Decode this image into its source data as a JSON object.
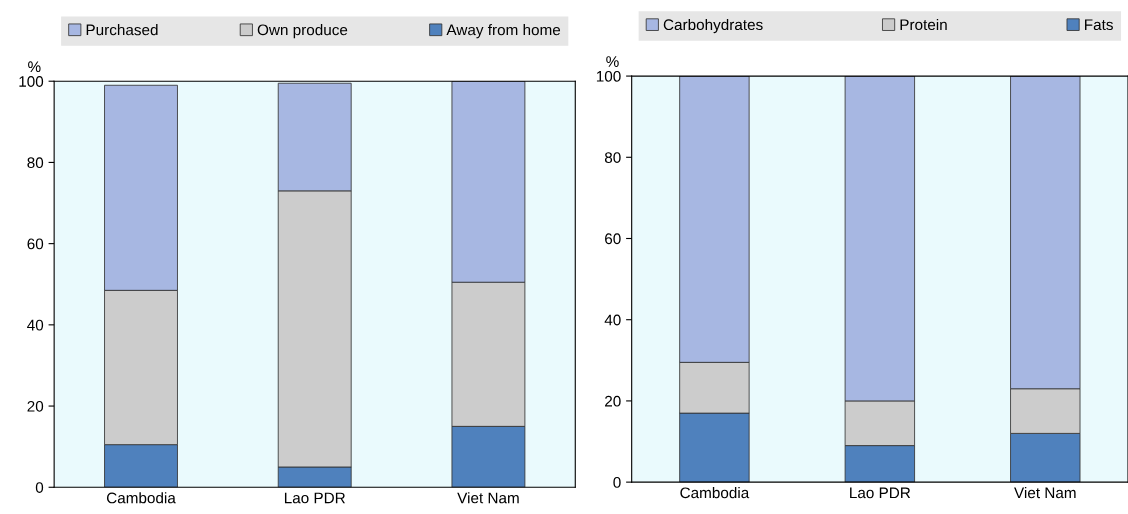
{
  "chart_data": [
    {
      "type": "bar",
      "stacked": true,
      "ylabel": "%",
      "categories": [
        "Cambodia",
        "Lao PDR",
        "Viet Nam"
      ],
      "ylim": [
        0,
        100
      ],
      "yticks": [
        0,
        20,
        40,
        60,
        80,
        100
      ],
      "legend": "top",
      "grid": false,
      "series": [
        {
          "name": "Away from home",
          "color": "#4f81bd",
          "values": [
            10.5,
            5,
            15
          ]
        },
        {
          "name": "Own produce",
          "color": "#cccccc",
          "values": [
            38,
            68,
            35.5
          ]
        },
        {
          "name": "Purchased",
          "color": "#a7b7e2",
          "values": [
            50.5,
            26.5,
            49.5
          ]
        }
      ]
    },
    {
      "type": "bar",
      "stacked": true,
      "ylabel": "%",
      "categories": [
        "Cambodia",
        "Lao PDR",
        "Viet Nam"
      ],
      "ylim": [
        0,
        100
      ],
      "yticks": [
        0,
        20,
        40,
        60,
        80,
        100
      ],
      "legend": "top",
      "grid": false,
      "series": [
        {
          "name": "Fats",
          "color": "#4f81bd",
          "values": [
            17,
            9,
            12
          ]
        },
        {
          "name": "Protein",
          "color": "#cccccc",
          "values": [
            12.5,
            11,
            11
          ]
        },
        {
          "name": "Carbohydrates",
          "color": "#a7b7e2",
          "values": [
            70.5,
            80,
            77
          ]
        }
      ]
    }
  ]
}
